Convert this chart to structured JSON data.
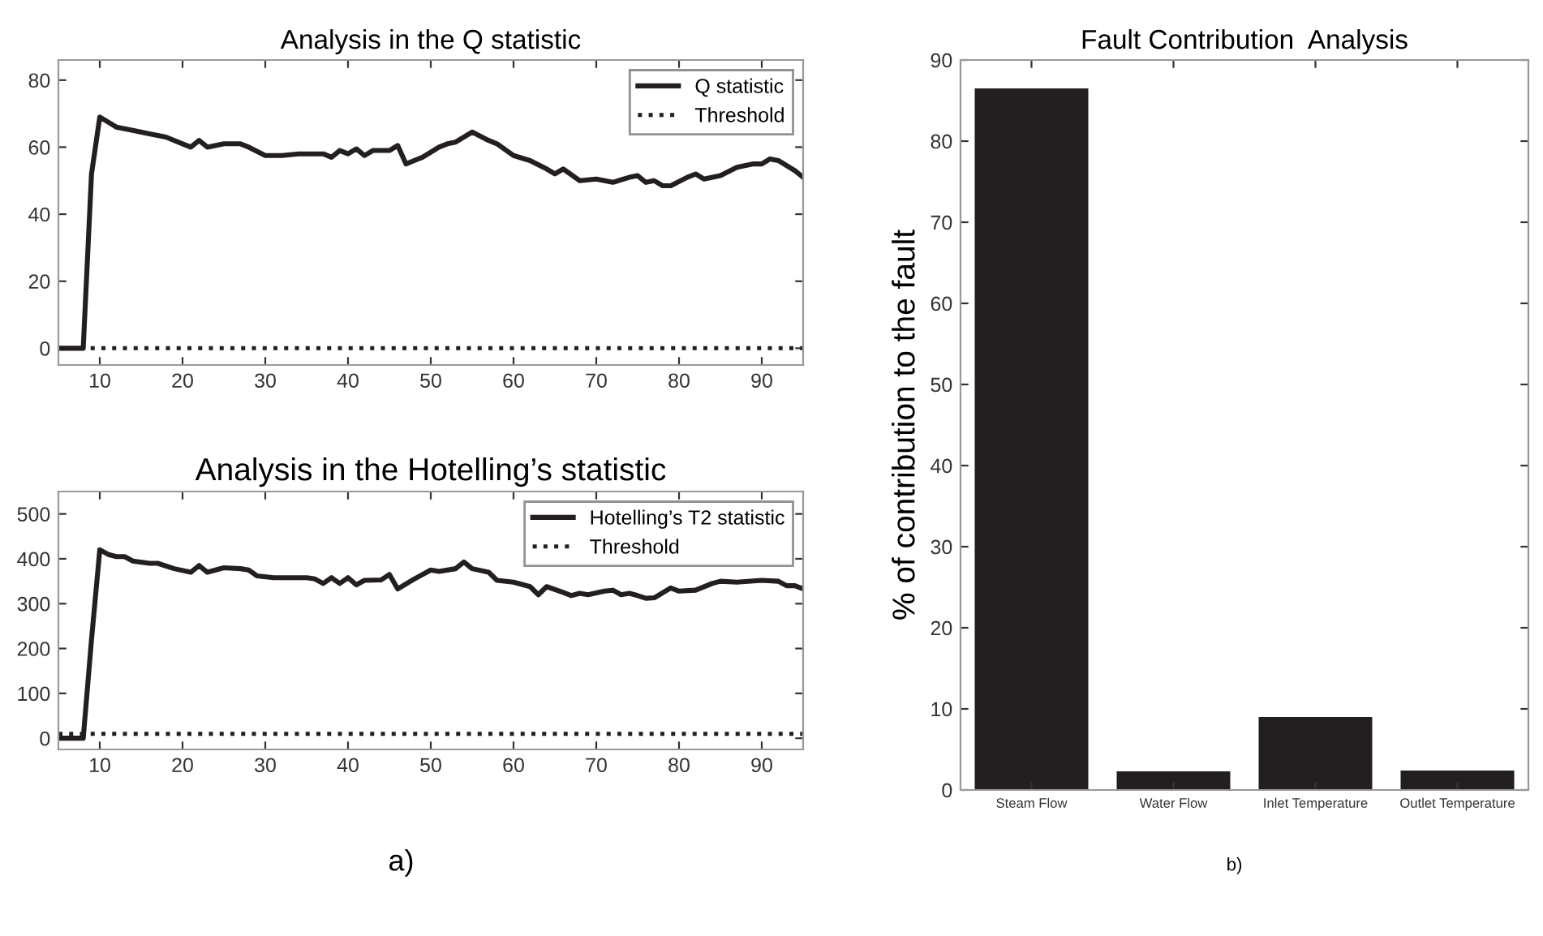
{
  "chart_data": [
    {
      "type": "line",
      "title": "Analysis in the Q statistic",
      "xlim": [
        5,
        95
      ],
      "ylim": [
        -5,
        86
      ],
      "xticks": [
        10,
        20,
        30,
        40,
        50,
        60,
        70,
        80,
        90
      ],
      "yticks": [
        0,
        20,
        40,
        60,
        80
      ],
      "grid": false,
      "legend": "top right",
      "series": [
        {
          "name": "Q statistic",
          "color": "#231f20",
          "line_style": "solid",
          "x": [
            5,
            8,
            9,
            10,
            12,
            14,
            16,
            18,
            20,
            21,
            22,
            23,
            25,
            27,
            28,
            30,
            32,
            34,
            37,
            38,
            39,
            40,
            41,
            42,
            43,
            45,
            46,
            47,
            49,
            51,
            52,
            53,
            55,
            57,
            58,
            60,
            62,
            64,
            65,
            66,
            68,
            70,
            72,
            74,
            75,
            76,
            77,
            78,
            79,
            81,
            82,
            83,
            85,
            87,
            89,
            90,
            91,
            92,
            94,
            95
          ],
          "values": [
            0,
            0,
            52,
            69,
            66,
            65,
            64,
            63,
            61,
            60,
            62,
            60,
            61,
            61,
            60,
            57.5,
            57.5,
            58,
            58,
            57,
            59,
            58,
            59.5,
            57.5,
            59,
            59,
            60.5,
            55,
            57,
            60,
            61,
            61.5,
            64.5,
            62,
            61,
            57.5,
            56,
            53.5,
            52,
            53.5,
            50,
            50.5,
            49.5,
            51,
            51.5,
            49.5,
            50,
            48.5,
            48.5,
            51,
            52,
            50.5,
            51.5,
            54,
            55,
            55,
            56.5,
            56,
            53,
            51
          ]
        },
        {
          "name": "Threshold",
          "color": "#231f20",
          "line_style": "dotted",
          "x": [
            5,
            95
          ],
          "values": [
            0,
            0
          ]
        }
      ]
    },
    {
      "type": "line",
      "title": "Analysis in the Hotelling’s statistic",
      "xlim": [
        5,
        95
      ],
      "ylim": [
        -25,
        550
      ],
      "xticks": [
        10,
        20,
        30,
        40,
        50,
        60,
        70,
        80,
        90
      ],
      "yticks": [
        0,
        100,
        200,
        300,
        400,
        500
      ],
      "grid": false,
      "legend": "top right",
      "annotations": [
        "a)"
      ],
      "series": [
        {
          "name": "Hotelling’s T2 statistic",
          "color": "#231f20",
          "line_style": "solid",
          "x": [
            5,
            8,
            9,
            10,
            11,
            12,
            13,
            14,
            16,
            17,
            19,
            21,
            22,
            23,
            25,
            27,
            28,
            29,
            31,
            35,
            36,
            37,
            38,
            39,
            40,
            41,
            42,
            44,
            45,
            46,
            48,
            50,
            51,
            53,
            54,
            55,
            57,
            58,
            60,
            62,
            63,
            64,
            66,
            67,
            68,
            69,
            71,
            72,
            73,
            74,
            75,
            76,
            77,
            79,
            80,
            82,
            84,
            85,
            87,
            90,
            92,
            93,
            94,
            95
          ],
          "values": [
            0,
            0,
            220,
            420,
            410,
            405,
            405,
            395,
            390,
            390,
            378,
            370,
            385,
            370,
            380,
            378,
            375,
            362,
            358,
            358,
            355,
            345,
            358,
            345,
            358,
            342,
            352,
            353,
            365,
            333,
            355,
            375,
            372,
            378,
            393,
            378,
            370,
            352,
            348,
            338,
            320,
            338,
            325,
            318,
            323,
            320,
            328,
            330,
            320,
            323,
            318,
            312,
            313,
            335,
            328,
            330,
            345,
            350,
            348,
            352,
            350,
            340,
            340,
            333
          ]
        },
        {
          "name": "Threshold",
          "color": "#231f20",
          "line_style": "dotted",
          "x": [
            5,
            95
          ],
          "values": [
            10,
            10
          ]
        }
      ]
    },
    {
      "type": "bar",
      "title": "Fault Contribution  Analysis",
      "ylabel": "% of contribution to the fault",
      "categories": [
        "Steam Flow",
        "Water Flow",
        "Inlet Temperature",
        "Outlet Temperature"
      ],
      "values": [
        86.5,
        2.3,
        9,
        2.4
      ],
      "color": "#231f20",
      "ylim": [
        0,
        90
      ],
      "yticks": [
        0,
        10,
        20,
        30,
        40,
        50,
        60,
        70,
        80,
        90
      ],
      "grid": false,
      "annotations": [
        "b)"
      ]
    }
  ]
}
